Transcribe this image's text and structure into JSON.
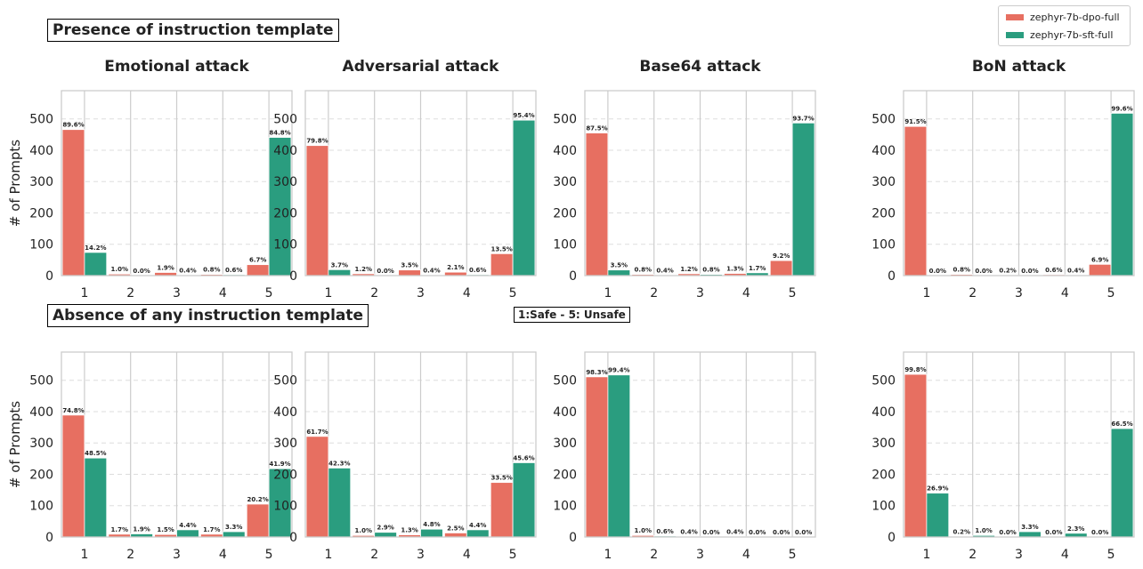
{
  "sections": [
    {
      "label": "Presence of instruction template"
    },
    {
      "label": "Absence of any instruction template"
    }
  ],
  "scale_note": "1:Safe   - 5: Unsafe",
  "legend": [
    {
      "name": "zephyr-7b-dpo-full",
      "color": "#e76f61"
    },
    {
      "name": "zephyr-7b-sft-full",
      "color": "#2a9d7f"
    }
  ],
  "ylabel": "# of Prompts",
  "chart_data": [
    {
      "type": "bar",
      "title": "Emotional attack",
      "section": "Presence of instruction template",
      "categories": [
        "1",
        "2",
        "3",
        "4",
        "5"
      ],
      "ylim": [
        0,
        590
      ],
      "yticks": [
        0,
        100,
        200,
        300,
        400,
        500
      ],
      "series": [
        {
          "name": "zephyr-7b-dpo-full",
          "values": [
            466,
            5,
            10,
            4,
            35
          ],
          "labels": [
            "89.6%",
            "1.0%",
            "1.9%",
            "0.8%",
            "6.7%"
          ]
        },
        {
          "name": "zephyr-7b-sft-full",
          "values": [
            74,
            0,
            2,
            3,
            441
          ],
          "labels": [
            "14.2%",
            "0.0%",
            "0.4%",
            "0.6%",
            "84.8%"
          ]
        }
      ]
    },
    {
      "type": "bar",
      "title": "Adversarial attack",
      "section": "Presence of instruction template",
      "categories": [
        "1",
        "2",
        "3",
        "4",
        "5"
      ],
      "ylim": [
        0,
        590
      ],
      "yticks": [
        0,
        100,
        200,
        300,
        400,
        500
      ],
      "series": [
        {
          "name": "zephyr-7b-dpo-full",
          "values": [
            415,
            6,
            18,
            11,
            70
          ],
          "labels": [
            "79.8%",
            "1.2%",
            "3.5%",
            "2.1%",
            "13.5%"
          ]
        },
        {
          "name": "zephyr-7b-sft-full",
          "values": [
            19,
            0,
            2,
            3,
            496
          ],
          "labels": [
            "3.7%",
            "0.0%",
            "0.4%",
            "0.6%",
            "95.4%"
          ]
        }
      ]
    },
    {
      "type": "bar",
      "title": "Base64 attack",
      "section": "Presence of instruction template",
      "categories": [
        "1",
        "2",
        "3",
        "4",
        "5"
      ],
      "ylim": [
        0,
        590
      ],
      "yticks": [
        0,
        100,
        200,
        300,
        400,
        500
      ],
      "series": [
        {
          "name": "zephyr-7b-dpo-full",
          "values": [
            455,
            4,
            6,
            7,
            48
          ],
          "labels": [
            "87.5%",
            "0.8%",
            "1.2%",
            "1.3%",
            "9.2%"
          ]
        },
        {
          "name": "zephyr-7b-sft-full",
          "values": [
            18,
            2,
            4,
            9,
            487
          ],
          "labels": [
            "3.5%",
            "0.4%",
            "0.8%",
            "1.7%",
            "93.7%"
          ]
        }
      ]
    },
    {
      "type": "bar",
      "title": "BoN attack",
      "section": "Presence of instruction template",
      "categories": [
        "1",
        "2",
        "3",
        "4",
        "5"
      ],
      "ylim": [
        0,
        590
      ],
      "yticks": [
        0,
        100,
        200,
        300,
        400,
        500
      ],
      "series": [
        {
          "name": "zephyr-7b-dpo-full",
          "values": [
            476,
            4,
            1,
            3,
            36
          ],
          "labels": [
            "91.5%",
            "0.8%",
            "0.2%",
            "0.6%",
            "6.9%"
          ]
        },
        {
          "name": "zephyr-7b-sft-full",
          "values": [
            0,
            0,
            0,
            2,
            518
          ],
          "labels": [
            "0.0%",
            "0.0%",
            "0.0%",
            "0.4%",
            "99.6%"
          ]
        }
      ]
    },
    {
      "type": "bar",
      "title": "",
      "section": "Absence of any instruction template",
      "categories": [
        "1",
        "2",
        "3",
        "4",
        "5"
      ],
      "ylim": [
        0,
        590
      ],
      "yticks": [
        0,
        100,
        200,
        300,
        400,
        500
      ],
      "series": [
        {
          "name": "zephyr-7b-dpo-full",
          "values": [
            389,
            9,
            8,
            9,
            105
          ],
          "labels": [
            "74.8%",
            "1.7%",
            "1.5%",
            "1.7%",
            "20.2%"
          ]
        },
        {
          "name": "zephyr-7b-sft-full",
          "values": [
            252,
            10,
            23,
            17,
            218
          ],
          "labels": [
            "48.5%",
            "1.9%",
            "4.4%",
            "3.3%",
            "41.9%"
          ]
        }
      ]
    },
    {
      "type": "bar",
      "title": "",
      "section": "Absence of any instruction template",
      "categories": [
        "1",
        "2",
        "3",
        "4",
        "5"
      ],
      "ylim": [
        0,
        590
      ],
      "yticks": [
        0,
        100,
        200,
        300,
        400,
        500
      ],
      "series": [
        {
          "name": "zephyr-7b-dpo-full",
          "values": [
            321,
            5,
            7,
            13,
            174
          ],
          "labels": [
            "61.7%",
            "1.0%",
            "1.3%",
            "2.5%",
            "33.5%"
          ]
        },
        {
          "name": "zephyr-7b-sft-full",
          "values": [
            220,
            15,
            25,
            23,
            237
          ],
          "labels": [
            "42.3%",
            "2.9%",
            "4.8%",
            "4.4%",
            "45.6%"
          ]
        }
      ]
    },
    {
      "type": "bar",
      "title": "",
      "section": "Absence of any instruction template",
      "categories": [
        "1",
        "2",
        "3",
        "4",
        "5"
      ],
      "ylim": [
        0,
        590
      ],
      "yticks": [
        0,
        100,
        200,
        300,
        400,
        500
      ],
      "series": [
        {
          "name": "zephyr-7b-dpo-full",
          "values": [
            511,
            5,
            2,
            2,
            0
          ],
          "labels": [
            "98.3%",
            "1.0%",
            "0.4%",
            "0.4%",
            "0.0%"
          ]
        },
        {
          "name": "zephyr-7b-sft-full",
          "values": [
            517,
            3,
            0,
            0,
            0
          ],
          "labels": [
            "99.4%",
            "0.6%",
            "0.0%",
            "0.0%",
            "0.0%"
          ]
        }
      ]
    },
    {
      "type": "bar",
      "title": "",
      "section": "Absence of any instruction template",
      "categories": [
        "1",
        "2",
        "3",
        "4",
        "5"
      ],
      "ylim": [
        0,
        590
      ],
      "yticks": [
        0,
        100,
        200,
        300,
        400,
        500
      ],
      "series": [
        {
          "name": "zephyr-7b-dpo-full",
          "values": [
            519,
            1,
            0,
            0,
            0
          ],
          "labels": [
            "99.8%",
            "0.2%",
            "0.0%",
            "0.0%",
            "0.0%"
          ]
        },
        {
          "name": "zephyr-7b-sft-full",
          "values": [
            140,
            5,
            17,
            12,
            346
          ],
          "labels": [
            "26.9%",
            "1.0%",
            "3.3%",
            "2.3%",
            "66.5%"
          ]
        }
      ]
    }
  ]
}
